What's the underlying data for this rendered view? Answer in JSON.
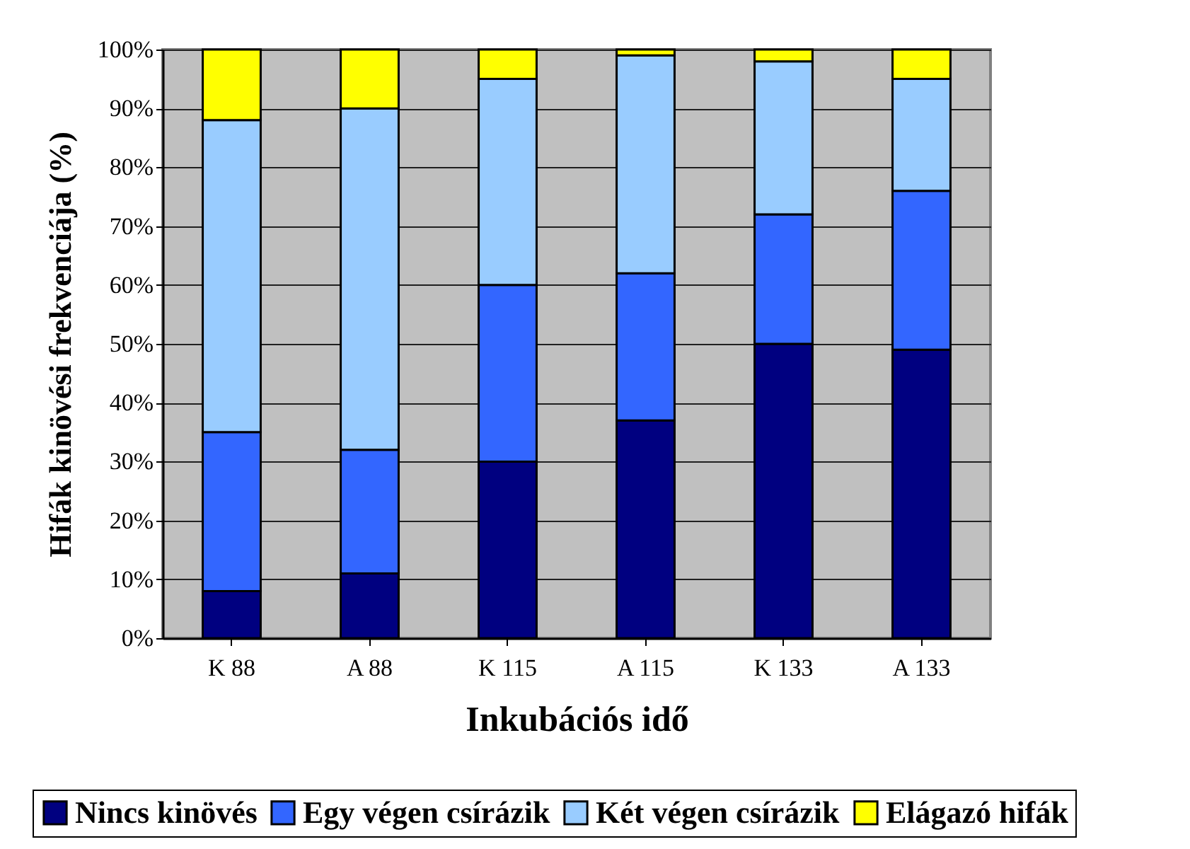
{
  "chart_data": {
    "type": "bar",
    "stacked": true,
    "xlabel": "Inkubációs idő",
    "ylabel": "Hifák kinövési frekvenciája (%)",
    "categories": [
      "K 88",
      "A 88",
      "K 115",
      "A 115",
      "K 133",
      "A 133"
    ],
    "series": [
      {
        "name": "Nincs kinövés",
        "color": "#000080",
        "values": [
          8,
          11,
          30,
          37,
          50,
          49
        ]
      },
      {
        "name": "Egy végen csírázik",
        "color": "#3366ff",
        "values": [
          27,
          21,
          30,
          25,
          22,
          27
        ]
      },
      {
        "name": "Két végen csírázik",
        "color": "#99ccff",
        "values": [
          53,
          58,
          35,
          37,
          26,
          19
        ]
      },
      {
        "name": "Elágazó hifák",
        "color": "#ffff00",
        "values": [
          12,
          10,
          5,
          1,
          2,
          5
        ]
      }
    ],
    "ylim": [
      0,
      100
    ],
    "yticks": [
      {
        "value": 0,
        "label": "0%"
      },
      {
        "value": 10,
        "label": "10%"
      },
      {
        "value": 20,
        "label": "20%"
      },
      {
        "value": 30,
        "label": "30%"
      },
      {
        "value": 40,
        "label": "40%"
      },
      {
        "value": 50,
        "label": "50%"
      },
      {
        "value": 60,
        "label": "60%"
      },
      {
        "value": 70,
        "label": "70%"
      },
      {
        "value": 80,
        "label": "80%"
      },
      {
        "value": 90,
        "label": "90%"
      },
      {
        "value": 100,
        "label": "100%"
      }
    ],
    "grid": "y",
    "legend": "bottom"
  }
}
